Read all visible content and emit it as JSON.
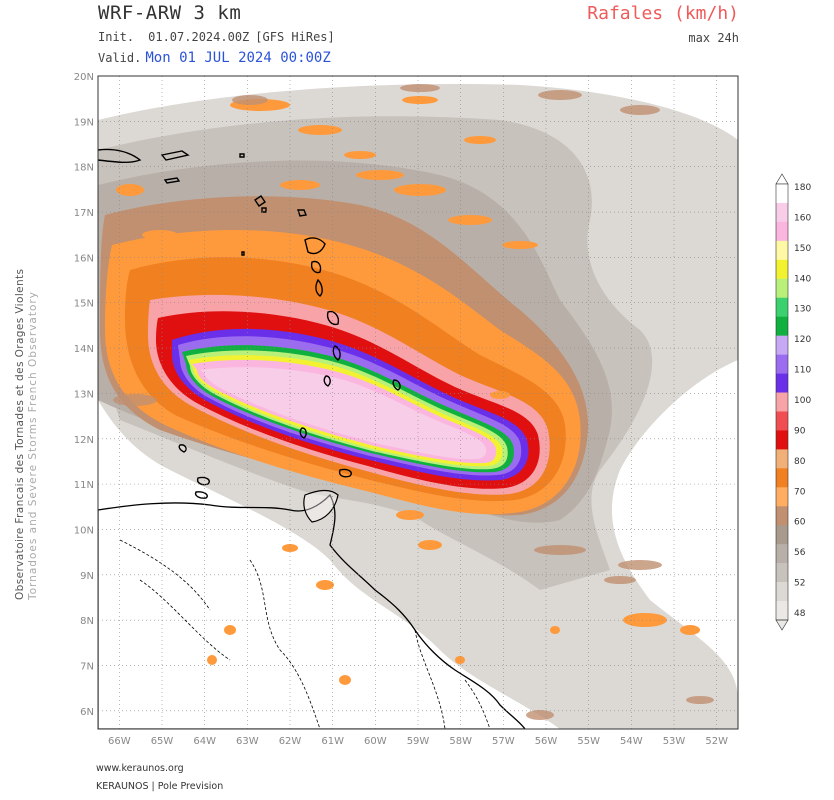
{
  "header": {
    "model": "WRF-ARW 3 km",
    "init_label": "Init.",
    "init_value": "01.07.2024.00Z",
    "init_source": "[GFS HiRes]",
    "valid_label": "Valid.",
    "valid_value": "Mon 01 JUL 2024 00:00Z",
    "parameter": "Rafales (km/h)",
    "period": "max 24h"
  },
  "side_credit": {
    "line1": "Observatoire Francais des Tornades et des Orages Violents",
    "line2": "Tornadoes and Severe Storms French Observatory"
  },
  "footer": {
    "website": "www.keraunos.org",
    "brand": "KERAUNOS | Pole Prevision"
  },
  "map": {
    "lat_labels": [
      "20N",
      "19N",
      "18N",
      "17N",
      "16N",
      "15N",
      "14N",
      "13N",
      "12N",
      "11N",
      "10N",
      "9N",
      "8N",
      "7N",
      "6N"
    ],
    "lon_labels": [
      "66W",
      "65W",
      "64W",
      "63W",
      "62W",
      "61W",
      "60W",
      "59W",
      "58W",
      "57W",
      "56W",
      "55W",
      "54W",
      "53W",
      "52W"
    ]
  },
  "colorbar": {
    "labels": [
      "180",
      "160",
      "150",
      "140",
      "130",
      "120",
      "110",
      "100",
      "90",
      "80",
      "70",
      "60",
      "56",
      "52",
      "48"
    ],
    "colors": [
      "#ffffff",
      "#f7cde8",
      "#fbb6e0",
      "#fff9a6",
      "#f2f230",
      "#b8f07a",
      "#3bd16f",
      "#10b040",
      "#c6a8f5",
      "#9c6cf0",
      "#6a2fe8",
      "#f7a3a8",
      "#f04e52",
      "#e01010",
      "#f0b078",
      "#f08020",
      "#ffad60",
      "#c09070",
      "#a89a8c",
      "#b8b0a8",
      "#c8c2bc",
      "#dcd8d4",
      "#ebe8e6"
    ]
  }
}
